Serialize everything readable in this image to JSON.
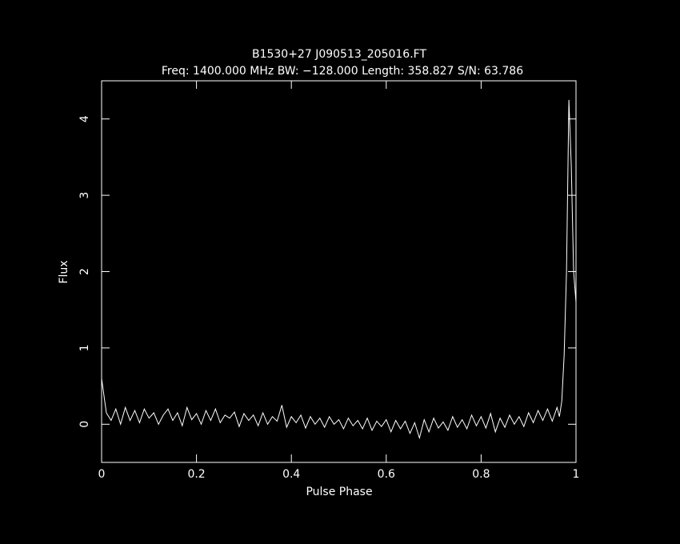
{
  "chart_data": {
    "type": "line",
    "title": "B1530+27 J090513_205016.FT",
    "subtitle": "Freq: 1400.000 MHz BW: −128.000 Length: 358.827 S/N: 63.786",
    "x_label": "Pulse Phase",
    "y_label": "Flux",
    "color": "#ffffff",
    "x": [
      0,
      0.01,
      0.02,
      0.03,
      0.04,
      0.05,
      0.06,
      0.07,
      0.08,
      0.09,
      0.1,
      0.11,
      0.12,
      0.13,
      0.14,
      0.15,
      0.16,
      0.17,
      0.18,
      0.19,
      0.2,
      0.21,
      0.22,
      0.23,
      0.24,
      0.25,
      0.26,
      0.27,
      0.28,
      0.29,
      0.3,
      0.31,
      0.32,
      0.33,
      0.34,
      0.35,
      0.36,
      0.37,
      0.38,
      0.39,
      0.4,
      0.41,
      0.42,
      0.43,
      0.44,
      0.45,
      0.46,
      0.47,
      0.48,
      0.49,
      0.5,
      0.51,
      0.52,
      0.53,
      0.54,
      0.55,
      0.56,
      0.57,
      0.58,
      0.59,
      0.6,
      0.61,
      0.62,
      0.63,
      0.64,
      0.65,
      0.66,
      0.67,
      0.68,
      0.69,
      0.7,
      0.71,
      0.72,
      0.73,
      0.74,
      0.75,
      0.76,
      0.77,
      0.78,
      0.79,
      0.8,
      0.81,
      0.82,
      0.83,
      0.84,
      0.85,
      0.86,
      0.87,
      0.88,
      0.89,
      0.9,
      0.91,
      0.92,
      0.93,
      0.94,
      0.95,
      0.96,
      0.965,
      0.97,
      0.975,
      0.98,
      0.985,
      0.99,
      0.995,
      1
    ],
    "values": [
      0.6,
      0.15,
      0.05,
      0.2,
      0.0,
      0.22,
      0.05,
      0.18,
      0.02,
      0.2,
      0.08,
      0.15,
      0.0,
      0.12,
      0.2,
      0.05,
      0.15,
      -0.02,
      0.22,
      0.06,
      0.14,
      0.0,
      0.18,
      0.05,
      0.2,
      0.02,
      0.12,
      0.08,
      0.16,
      -0.03,
      0.14,
      0.05,
      0.12,
      -0.02,
      0.15,
      0.0,
      0.1,
      0.04,
      0.25,
      -0.04,
      0.1,
      0.02,
      0.12,
      -0.05,
      0.1,
      0.0,
      0.08,
      -0.04,
      0.1,
      0.0,
      0.06,
      -0.06,
      0.08,
      -0.02,
      0.05,
      -0.06,
      0.08,
      -0.08,
      0.04,
      -0.03,
      0.06,
      -0.1,
      0.05,
      -0.06,
      0.04,
      -0.12,
      0.02,
      -0.18,
      0.06,
      -0.1,
      0.08,
      -0.05,
      0.03,
      -0.08,
      0.1,
      -0.04,
      0.06,
      -0.06,
      0.12,
      -0.02,
      0.1,
      -0.05,
      0.14,
      -0.1,
      0.08,
      -0.04,
      0.12,
      0.0,
      0.1,
      -0.03,
      0.15,
      0.02,
      0.18,
      0.05,
      0.2,
      0.04,
      0.22,
      0.1,
      0.3,
      0.9,
      2.0,
      4.25,
      3.4,
      2.0,
      1.6
    ],
    "xlim": [
      0,
      1
    ],
    "xticks": [
      0,
      0.2,
      0.4,
      0.6,
      0.8,
      1
    ],
    "ylim": [
      -0.5,
      4.5
    ],
    "yticks": [
      0,
      1,
      2,
      3,
      4
    ]
  }
}
